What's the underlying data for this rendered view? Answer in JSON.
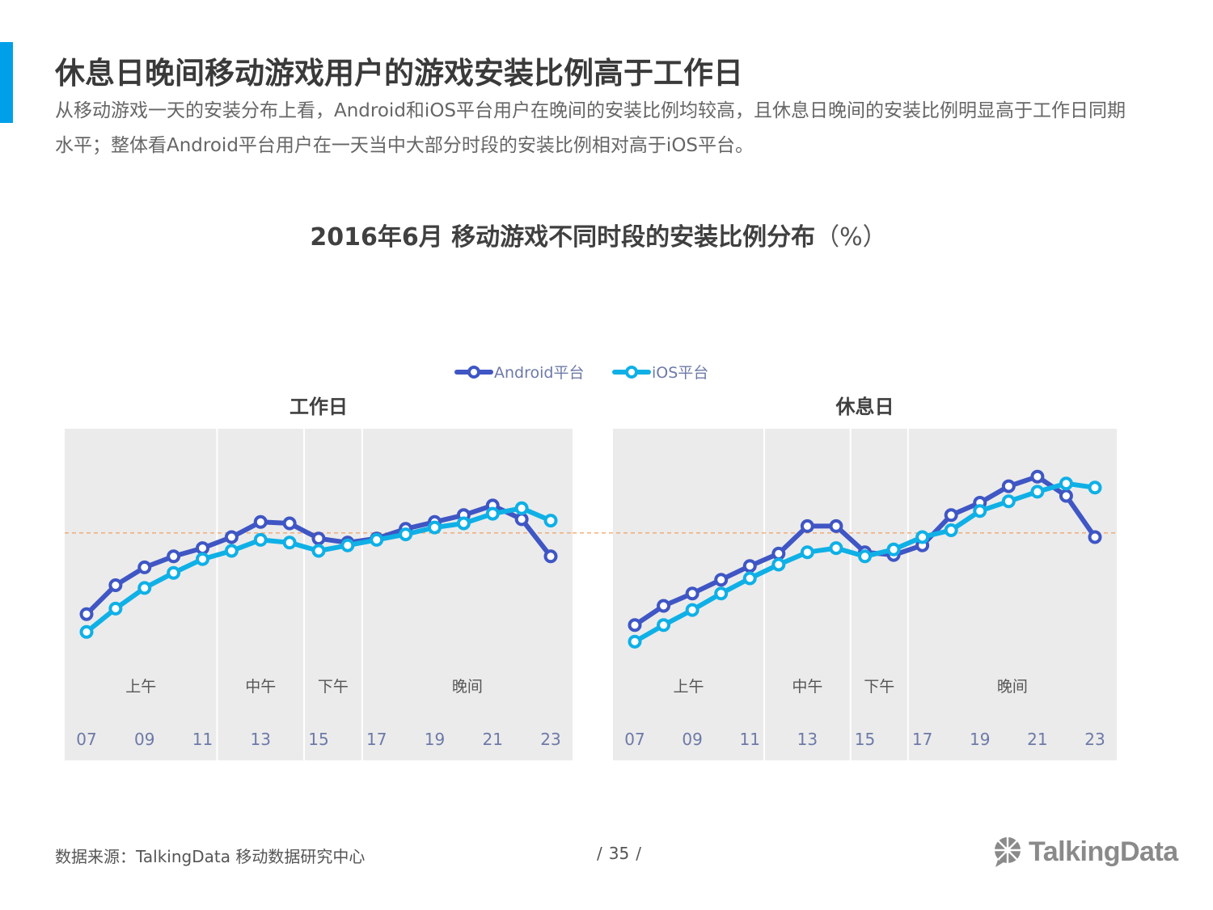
{
  "page": {
    "title": "休息日晚间移动游戏用户的游戏安装比例高于工作日",
    "subtitle": "从移动游戏一天的安装分布上看，Android和iOS平台用户在晚间的安装比例均较高，且休息日晚间的安装比例明显高于工作日同期水平；整体看Android平台用户在一天当中大部分时段的安装比例相对高于iOS平台。"
  },
  "colors": {
    "accent": "#00a0e9",
    "android": "#3f56c4",
    "ios": "#0fb0e6",
    "panel_bg": "#ebebeb",
    "reference_line": "#f0a060"
  },
  "chart_data": {
    "type": "line",
    "title": "2016年6月 移动游戏不同时段的安装比例分布",
    "unit": "（%）",
    "legend": [
      "Android平台",
      "iOS平台"
    ],
    "legend_position": "top-center",
    "y_axis_shown": false,
    "ylim": [
      0,
      10
    ],
    "reference_line_y": 6.65,
    "x": [
      7,
      8,
      9,
      10,
      11,
      12,
      13,
      14,
      15,
      16,
      17,
      18,
      19,
      20,
      21,
      22,
      23
    ],
    "x_tick_labels": [
      "07",
      "09",
      "11",
      "13",
      "15",
      "17",
      "19",
      "21",
      "23"
    ],
    "panels": [
      {
        "name": "工作日",
        "periods": [
          {
            "label": "上午",
            "start": 7,
            "end": 12
          },
          {
            "label": "中午",
            "start": 12,
            "end": 15
          },
          {
            "label": "下午",
            "start": 15,
            "end": 17
          },
          {
            "label": "晚间",
            "start": 17,
            "end": 23
          }
        ],
        "series": [
          {
            "name": "Android平台",
            "values": [
              3.7,
              4.75,
              5.4,
              5.8,
              6.1,
              6.5,
              7.05,
              7.0,
              6.45,
              6.3,
              6.45,
              6.8,
              7.05,
              7.3,
              7.65,
              7.15,
              5.8
            ]
          },
          {
            "name": "iOS平台",
            "values": [
              3.05,
              3.9,
              4.65,
              5.2,
              5.7,
              6.0,
              6.4,
              6.3,
              6.0,
              6.2,
              6.4,
              6.6,
              6.85,
              7.0,
              7.35,
              7.55,
              7.1
            ]
          }
        ]
      },
      {
        "name": "休息日",
        "periods": [
          {
            "label": "上午",
            "start": 7,
            "end": 12
          },
          {
            "label": "中午",
            "start": 12,
            "end": 15
          },
          {
            "label": "下午",
            "start": 15,
            "end": 17
          },
          {
            "label": "晚间",
            "start": 17,
            "end": 23
          }
        ],
        "series": [
          {
            "name": "Android平台",
            "values": [
              3.3,
              4.0,
              4.45,
              4.95,
              5.45,
              5.9,
              6.9,
              6.9,
              5.95,
              5.85,
              6.2,
              7.3,
              7.75,
              8.35,
              8.7,
              8.0,
              6.5
            ]
          },
          {
            "name": "iOS平台",
            "values": [
              2.7,
              3.3,
              3.85,
              4.45,
              5.0,
              5.5,
              5.95,
              6.1,
              5.8,
              6.05,
              6.5,
              6.75,
              7.45,
              7.8,
              8.15,
              8.45,
              8.3
            ]
          }
        ]
      }
    ]
  },
  "footer": {
    "source": "数据来源：TalkingData  移动数据研究中心",
    "page_number": "35",
    "logo_text": "TalkingData"
  }
}
